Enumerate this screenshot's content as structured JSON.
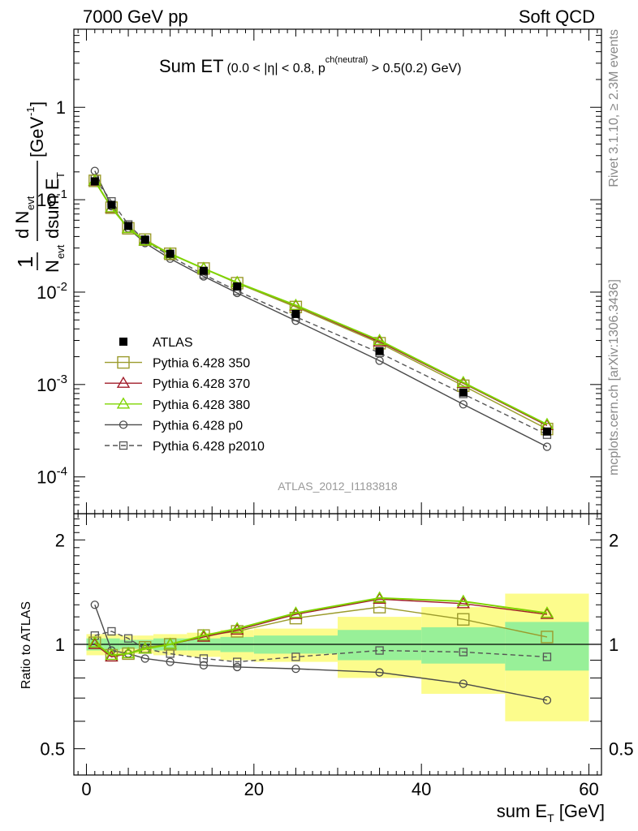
{
  "header": {
    "left": "7000 GeV pp",
    "right": "Soft QCD"
  },
  "side": {
    "top": "Rivet 3.1.10, ≥ 2.3M events",
    "bottom": "mcplots.cern.ch [arXiv:1306.3436]"
  },
  "chart_data": [
    {
      "type": "line",
      "panel": "main",
      "title": "Sum ET (0.0 < |η| < 0.8, p^ch(neutral) > 0.5(0.2) GeV)",
      "title_main": "Sum ET",
      "title_detail": "(0.0 < |η| < 0.8, p",
      "title_sup": "ch(neutral)",
      "title_tail": " > 0.5(0.2) GeV)",
      "ylabel": "1/N_evt dN_evt/dsum E_T [GeV^-1]",
      "watermark": "ATLAS_2012_I1183818",
      "xlim": [
        -1.5,
        61.5
      ],
      "ylim": [
        4e-05,
        7
      ],
      "yscale": "log",
      "x": [
        1,
        3,
        5,
        7,
        10,
        14,
        18,
        25,
        35,
        45,
        55
      ],
      "series": [
        {
          "name": "ATLAS",
          "color": "#000000",
          "marker": "filled-square",
          "line": "none",
          "values": [
            0.158,
            0.088,
            0.052,
            0.037,
            0.026,
            0.017,
            0.0115,
            0.0058,
            0.0023,
            0.00082,
            0.00031
          ]
        },
        {
          "name": "Pythia 6.428 350",
          "color": "#9b9b2c",
          "marker": "open-square",
          "line": "solid",
          "values": [
            0.16,
            0.082,
            0.049,
            0.037,
            0.026,
            0.018,
            0.0125,
            0.0069,
            0.0028,
            0.00097,
            0.00033
          ]
        },
        {
          "name": "Pythia 6.428 370",
          "color": "#a11c2a",
          "marker": "open-triangle",
          "line": "solid",
          "values": [
            0.159,
            0.081,
            0.049,
            0.036,
            0.026,
            0.018,
            0.0127,
            0.0071,
            0.0029,
            0.00103,
            0.00036
          ]
        },
        {
          "name": "Pythia 6.428 380",
          "color": "#7fd400",
          "marker": "open-triangle",
          "line": "solid",
          "values": [
            0.16,
            0.082,
            0.049,
            0.036,
            0.026,
            0.018,
            0.0127,
            0.0072,
            0.003,
            0.00105,
            0.00037
          ]
        },
        {
          "name": "Pythia 6.428 p0",
          "color": "#4a4a4a",
          "marker": "open-circle",
          "line": "solid",
          "values": [
            0.205,
            0.085,
            0.049,
            0.034,
            0.023,
            0.0148,
            0.0098,
            0.0049,
            0.00181,
            0.00061,
            0.000212
          ]
        },
        {
          "name": "Pythia 6.428 p2010",
          "color": "#555555",
          "marker": "open-square-small",
          "line": "dashed",
          "values": [
            0.168,
            0.096,
            0.054,
            0.036,
            0.0245,
            0.0155,
            0.0103,
            0.0054,
            0.0022,
            0.00079,
            0.000286
          ]
        }
      ],
      "yticks_labeled": [
        {
          "v": 1,
          "label": "1"
        },
        {
          "v": 0.1,
          "label": "10",
          "exp": "-1"
        },
        {
          "v": 0.01,
          "label": "10",
          "exp": "-2"
        },
        {
          "v": 0.001,
          "label": "10",
          "exp": "-3"
        },
        {
          "v": 0.0001,
          "label": "10",
          "exp": "-4"
        }
      ]
    },
    {
      "type": "line",
      "panel": "ratio",
      "ylabel": "Ratio to ATLAS",
      "xlabel": "sum E_T [GeV]",
      "xlabel_main": "sum E",
      "xlabel_sub": "T",
      "xlabel_unit": " [GeV]",
      "xlim": [
        -1.5,
        61.5
      ],
      "ylim": [
        0.42,
        2.38
      ],
      "yscale": "log",
      "xticks": [
        0,
        20,
        40,
        60
      ],
      "yticks": [
        0.5,
        1,
        2
      ],
      "bands": [
        {
          "x0": 0,
          "x1": 2,
          "stat_lo": 0.96,
          "stat_hi": 1.04,
          "tot_lo": 0.93,
          "tot_hi": 1.07
        },
        {
          "x0": 2,
          "x1": 4,
          "stat_lo": 0.96,
          "stat_hi": 1.04,
          "tot_lo": 0.93,
          "tot_hi": 1.07
        },
        {
          "x0": 4,
          "x1": 6,
          "stat_lo": 0.97,
          "stat_hi": 1.03,
          "tot_lo": 0.94,
          "tot_hi": 1.06
        },
        {
          "x0": 6,
          "x1": 8,
          "stat_lo": 0.97,
          "stat_hi": 1.03,
          "tot_lo": 0.94,
          "tot_hi": 1.06
        },
        {
          "x0": 8,
          "x1": 12,
          "stat_lo": 0.96,
          "stat_hi": 1.04,
          "tot_lo": 0.93,
          "tot_hi": 1.07
        },
        {
          "x0": 12,
          "x1": 16,
          "stat_lo": 0.96,
          "stat_hi": 1.04,
          "tot_lo": 0.92,
          "tot_hi": 1.08
        },
        {
          "x0": 16,
          "x1": 20,
          "stat_lo": 0.95,
          "stat_hi": 1.05,
          "tot_lo": 0.9,
          "tot_hi": 1.1
        },
        {
          "x0": 20,
          "x1": 30,
          "stat_lo": 0.94,
          "stat_hi": 1.06,
          "tot_lo": 0.89,
          "tot_hi": 1.11
        },
        {
          "x0": 30,
          "x1": 40,
          "stat_lo": 0.9,
          "stat_hi": 1.1,
          "tot_lo": 0.8,
          "tot_hi": 1.2
        },
        {
          "x0": 40,
          "x1": 50,
          "stat_lo": 0.88,
          "stat_hi": 1.12,
          "tot_lo": 0.72,
          "tot_hi": 1.28
        },
        {
          "x0": 50,
          "x1": 60,
          "stat_lo": 0.84,
          "stat_hi": 1.16,
          "tot_lo": 0.6,
          "tot_hi": 1.4
        }
      ],
      "band_colors": {
        "stat": "#98f098",
        "total": "#fcfc8c"
      },
      "x": [
        1,
        3,
        5,
        7,
        10,
        14,
        18,
        25,
        35,
        45,
        55
      ],
      "series": [
        {
          "name": "Pythia 6.428 350",
          "color": "#9b9b2c",
          "marker": "open-square",
          "line": "solid",
          "values": [
            1.01,
            0.93,
            0.94,
            0.98,
            1.0,
            1.06,
            1.09,
            1.19,
            1.28,
            1.18,
            1.05
          ]
        },
        {
          "name": "Pythia 6.428 370",
          "color": "#a11c2a",
          "marker": "open-triangle",
          "line": "solid",
          "values": [
            1.0,
            0.92,
            0.94,
            0.97,
            1.0,
            1.05,
            1.1,
            1.22,
            1.35,
            1.31,
            1.22
          ]
        },
        {
          "name": "Pythia 6.428 380",
          "color": "#7fd400",
          "marker": "open-triangle",
          "line": "solid",
          "values": [
            1.01,
            0.93,
            0.94,
            0.97,
            1.0,
            1.06,
            1.11,
            1.23,
            1.36,
            1.33,
            1.23
          ]
        },
        {
          "name": "Pythia 6.428 p0",
          "color": "#4a4a4a",
          "marker": "open-circle",
          "line": "solid",
          "values": [
            1.3,
            0.96,
            0.94,
            0.91,
            0.89,
            0.87,
            0.86,
            0.85,
            0.83,
            0.77,
            0.69
          ]
        },
        {
          "name": "Pythia 6.428 p2010",
          "color": "#555555",
          "marker": "open-square-small",
          "line": "dashed",
          "values": [
            1.06,
            1.09,
            1.04,
            0.97,
            0.94,
            0.91,
            0.89,
            0.92,
            0.96,
            0.95,
            0.92
          ]
        }
      ]
    }
  ]
}
